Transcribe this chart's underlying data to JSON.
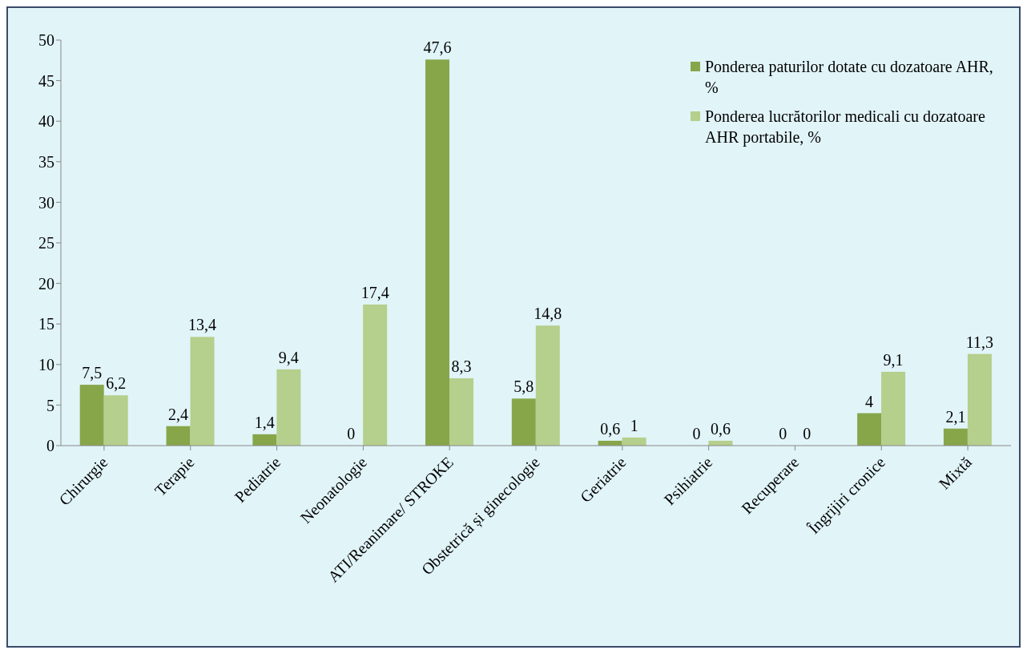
{
  "chart_data": {
    "type": "bar",
    "categories": [
      "Chirurgie",
      "Terapie",
      "Pediatrie",
      "Neonatologie",
      "ATI/Reanimare/ STROKE",
      "Obstetrică și ginecologie",
      "Geriatrie",
      "Psihiatrie",
      "Recuperare",
      "Îngrijiri cronice",
      "Mixtă"
    ],
    "series": [
      {
        "name": "Ponderea paturilor dotate cu dozatoare AHR, %",
        "color": "#87a64a",
        "values": [
          7.5,
          2.4,
          1.4,
          0,
          47.6,
          5.8,
          0.6,
          0,
          0,
          4,
          2.1
        ],
        "value_labels": [
          "7,5",
          "2,4",
          "1,4",
          "0",
          "47,6",
          "5,8",
          "0,6",
          "0",
          "0",
          "4",
          "2,1"
        ]
      },
      {
        "name": "Ponderea lucrătorilor medicali cu dozatoare AHR portabile, %",
        "color": "#b5cf8c",
        "values": [
          6.2,
          13.4,
          9.4,
          17.4,
          8.3,
          14.8,
          1,
          0.6,
          0,
          9.1,
          11.3
        ],
        "value_labels": [
          "6,2",
          "13,4",
          "9,4",
          "17,4",
          "8,3",
          "14,8",
          "1",
          "0,6",
          "0",
          "9,1",
          "11,3"
        ]
      }
    ],
    "ylim": [
      0,
      50
    ],
    "yticks": [
      0,
      5,
      10,
      15,
      20,
      25,
      30,
      35,
      40,
      45,
      50
    ],
    "grid": false,
    "legend": "top right"
  }
}
